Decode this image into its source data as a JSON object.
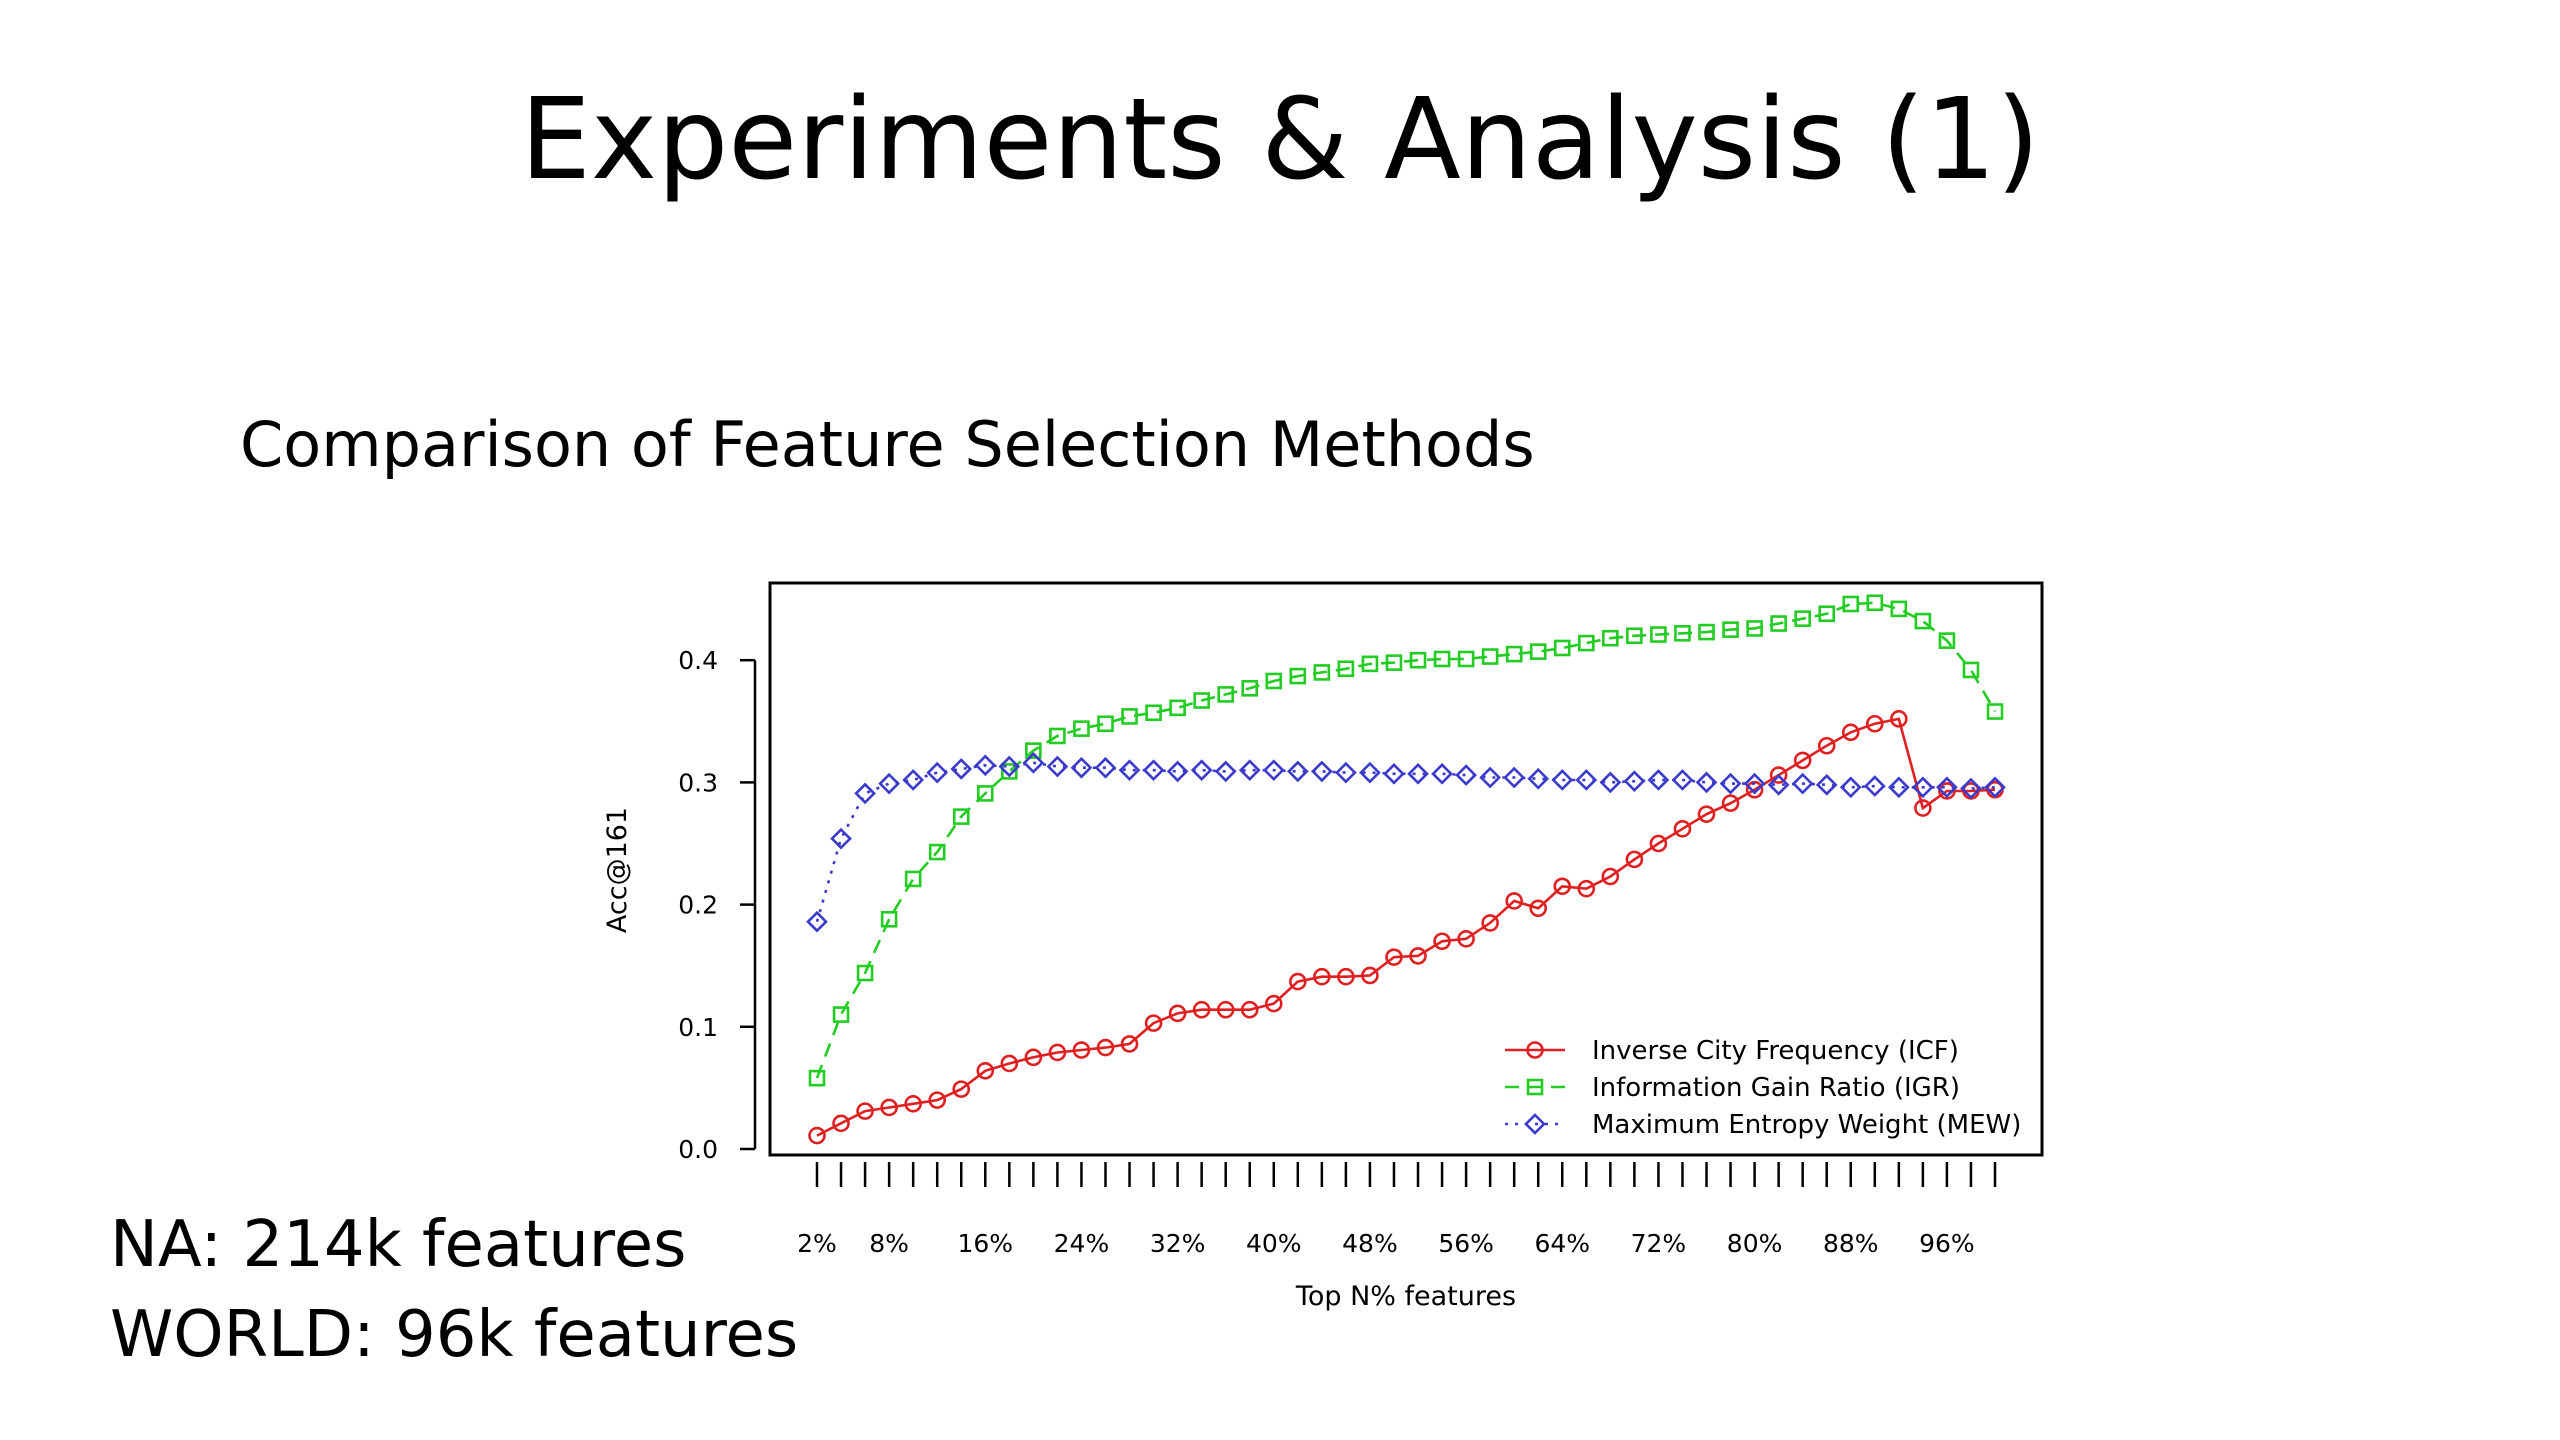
{
  "slide": {
    "title": "Experiments & Analysis (1)",
    "subtitle": "Comparison of Feature Selection Methods",
    "notes": [
      "NA: 214k features",
      "WORLD: 96k features"
    ]
  },
  "chart_data": {
    "type": "line",
    "title": "",
    "xlabel": "Top N% features",
    "ylabel": "Acc@161",
    "xlim": [
      2,
      100
    ],
    "ylim": [
      0,
      0.45
    ],
    "x_ticks": [
      2,
      4,
      6,
      8,
      10,
      12,
      14,
      16,
      18,
      20,
      22,
      24,
      26,
      28,
      30,
      32,
      34,
      36,
      38,
      40,
      42,
      44,
      46,
      48,
      50,
      52,
      54,
      56,
      58,
      60,
      62,
      64,
      66,
      68,
      70,
      72,
      74,
      76,
      78,
      80,
      82,
      84,
      86,
      88,
      90,
      92,
      94,
      96,
      98,
      100
    ],
    "x_tick_labels": [
      {
        "x": 2,
        "label": "2%"
      },
      {
        "x": 8,
        "label": "8%"
      },
      {
        "x": 16,
        "label": "16%"
      },
      {
        "x": 24,
        "label": "24%"
      },
      {
        "x": 32,
        "label": "32%"
      },
      {
        "x": 40,
        "label": "40%"
      },
      {
        "x": 48,
        "label": "48%"
      },
      {
        "x": 56,
        "label": "56%"
      },
      {
        "x": 64,
        "label": "64%"
      },
      {
        "x": 72,
        "label": "72%"
      },
      {
        "x": 80,
        "label": "80%"
      },
      {
        "x": 88,
        "label": "88%"
      },
      {
        "x": 96,
        "label": "96%"
      }
    ],
    "y_ticks": [
      {
        "v": 0.0,
        "label": "0.0"
      },
      {
        "v": 0.1,
        "label": "0.1"
      },
      {
        "v": 0.2,
        "label": "0.2"
      },
      {
        "v": 0.3,
        "label": "0.3"
      },
      {
        "v": 0.4,
        "label": "0.4"
      }
    ],
    "legend_position": "bottom-right",
    "x": [
      2,
      4,
      6,
      8,
      10,
      12,
      14,
      16,
      18,
      20,
      22,
      24,
      26,
      28,
      30,
      32,
      34,
      36,
      38,
      40,
      42,
      44,
      46,
      48,
      50,
      52,
      54,
      56,
      58,
      60,
      62,
      64,
      66,
      68,
      70,
      72,
      74,
      76,
      78,
      80,
      82,
      84,
      86,
      88,
      90,
      92,
      94,
      96,
      98,
      100
    ],
    "series": [
      {
        "name": "Inverse City Frequency (ICF)",
        "color": "#e02020",
        "marker": "circle",
        "dash": "solid",
        "values": [
          0.011,
          0.021,
          0.031,
          0.034,
          0.037,
          0.04,
          0.049,
          0.064,
          0.07,
          0.075,
          0.079,
          0.081,
          0.083,
          0.086,
          0.103,
          0.111,
          0.114,
          0.114,
          0.114,
          0.119,
          0.137,
          0.141,
          0.141,
          0.142,
          0.157,
          0.158,
          0.17,
          0.172,
          0.185,
          0.203,
          0.197,
          0.215,
          0.213,
          0.223,
          0.237,
          0.25,
          0.262,
          0.274,
          0.283,
          0.294,
          0.306,
          0.318,
          0.33,
          0.341,
          0.348,
          0.352,
          0.279,
          0.293,
          0.293,
          0.294
        ]
      },
      {
        "name": "Information Gain Ratio (IGR)",
        "color": "#22cc22",
        "marker": "square",
        "dash": "dashed",
        "values": [
          0.058,
          0.11,
          0.144,
          0.188,
          0.221,
          0.243,
          0.272,
          0.291,
          0.309,
          0.326,
          0.338,
          0.344,
          0.348,
          0.354,
          0.357,
          0.361,
          0.367,
          0.372,
          0.377,
          0.383,
          0.387,
          0.39,
          0.393,
          0.397,
          0.398,
          0.4,
          0.401,
          0.401,
          0.403,
          0.405,
          0.407,
          0.41,
          0.414,
          0.418,
          0.42,
          0.421,
          0.422,
          0.423,
          0.425,
          0.426,
          0.43,
          0.434,
          0.438,
          0.446,
          0.447,
          0.442,
          0.432,
          0.416,
          0.392,
          0.358
        ]
      },
      {
        "name": "Maximum Entropy Weight (MEW)",
        "color": "#3a3acc",
        "marker": "diamond",
        "dash": "dotted",
        "values": [
          0.186,
          0.254,
          0.291,
          0.299,
          0.302,
          0.308,
          0.311,
          0.314,
          0.313,
          0.316,
          0.313,
          0.312,
          0.312,
          0.31,
          0.31,
          0.309,
          0.31,
          0.309,
          0.31,
          0.31,
          0.309,
          0.309,
          0.308,
          0.308,
          0.307,
          0.307,
          0.307,
          0.306,
          0.304,
          0.304,
          0.303,
          0.302,
          0.302,
          0.3,
          0.301,
          0.302,
          0.302,
          0.3,
          0.299,
          0.299,
          0.298,
          0.299,
          0.298,
          0.296,
          0.297,
          0.296,
          0.296,
          0.296,
          0.295,
          0.296
        ]
      }
    ]
  }
}
